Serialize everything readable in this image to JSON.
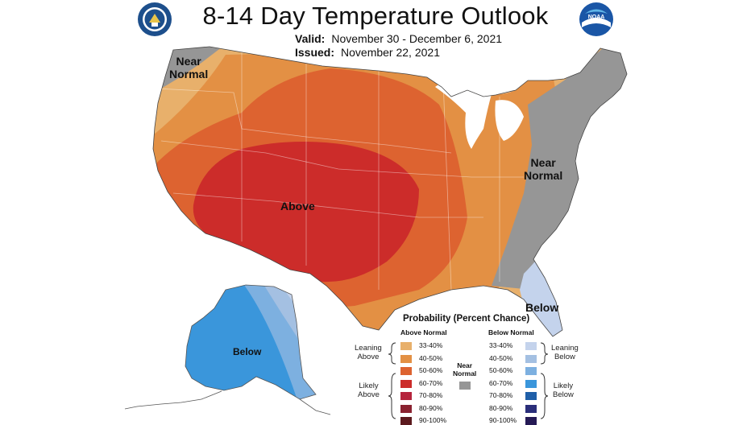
{
  "title": "8-14 Day Temperature Outlook",
  "valid_label": "Valid:",
  "valid_value": "November 30 - December 6, 2021",
  "issued_label": "Issued:",
  "issued_value": "November 22, 2021",
  "logos": {
    "left": "doc-seal-icon",
    "right": "noaa-logo-icon"
  },
  "map_labels": {
    "near_normal_west": [
      "Near",
      "Normal"
    ],
    "near_normal_east": [
      "Near",
      "Normal"
    ],
    "above": "Above",
    "below_se": "Below",
    "below_alaska": "Below"
  },
  "legend": {
    "title": "Probability (Percent Chance)",
    "above_header": "Above Normal",
    "below_header": "Below Normal",
    "near_normal": [
      "Near",
      "Normal"
    ],
    "leaning_above": [
      "Leaning",
      "Above"
    ],
    "likely_above": [
      "Likely",
      "Above"
    ],
    "leaning_below": [
      "Leaning",
      "Below"
    ],
    "likely_below": [
      "Likely",
      "Below"
    ],
    "above": [
      {
        "label": "33-40%",
        "color": "#e8b06b"
      },
      {
        "label": "40-50%",
        "color": "#e39044"
      },
      {
        "label": "50-60%",
        "color": "#dd6330"
      },
      {
        "label": "60-70%",
        "color": "#cc2c2a"
      },
      {
        "label": "70-80%",
        "color": "#b5243c"
      },
      {
        "label": "80-90%",
        "color": "#8a2230"
      },
      {
        "label": "90-100%",
        "color": "#5c1a1e"
      }
    ],
    "below": [
      {
        "label": "33-40%",
        "color": "#c4d3ec"
      },
      {
        "label": "40-50%",
        "color": "#a4c0e2"
      },
      {
        "label": "50-60%",
        "color": "#7db0e0"
      },
      {
        "label": "60-70%",
        "color": "#3a96db"
      },
      {
        "label": "70-80%",
        "color": "#1f5fa8"
      },
      {
        "label": "80-90%",
        "color": "#2a2e7a"
      },
      {
        "label": "90-100%",
        "color": "#251a55"
      }
    ],
    "near_color": "#969696"
  }
}
